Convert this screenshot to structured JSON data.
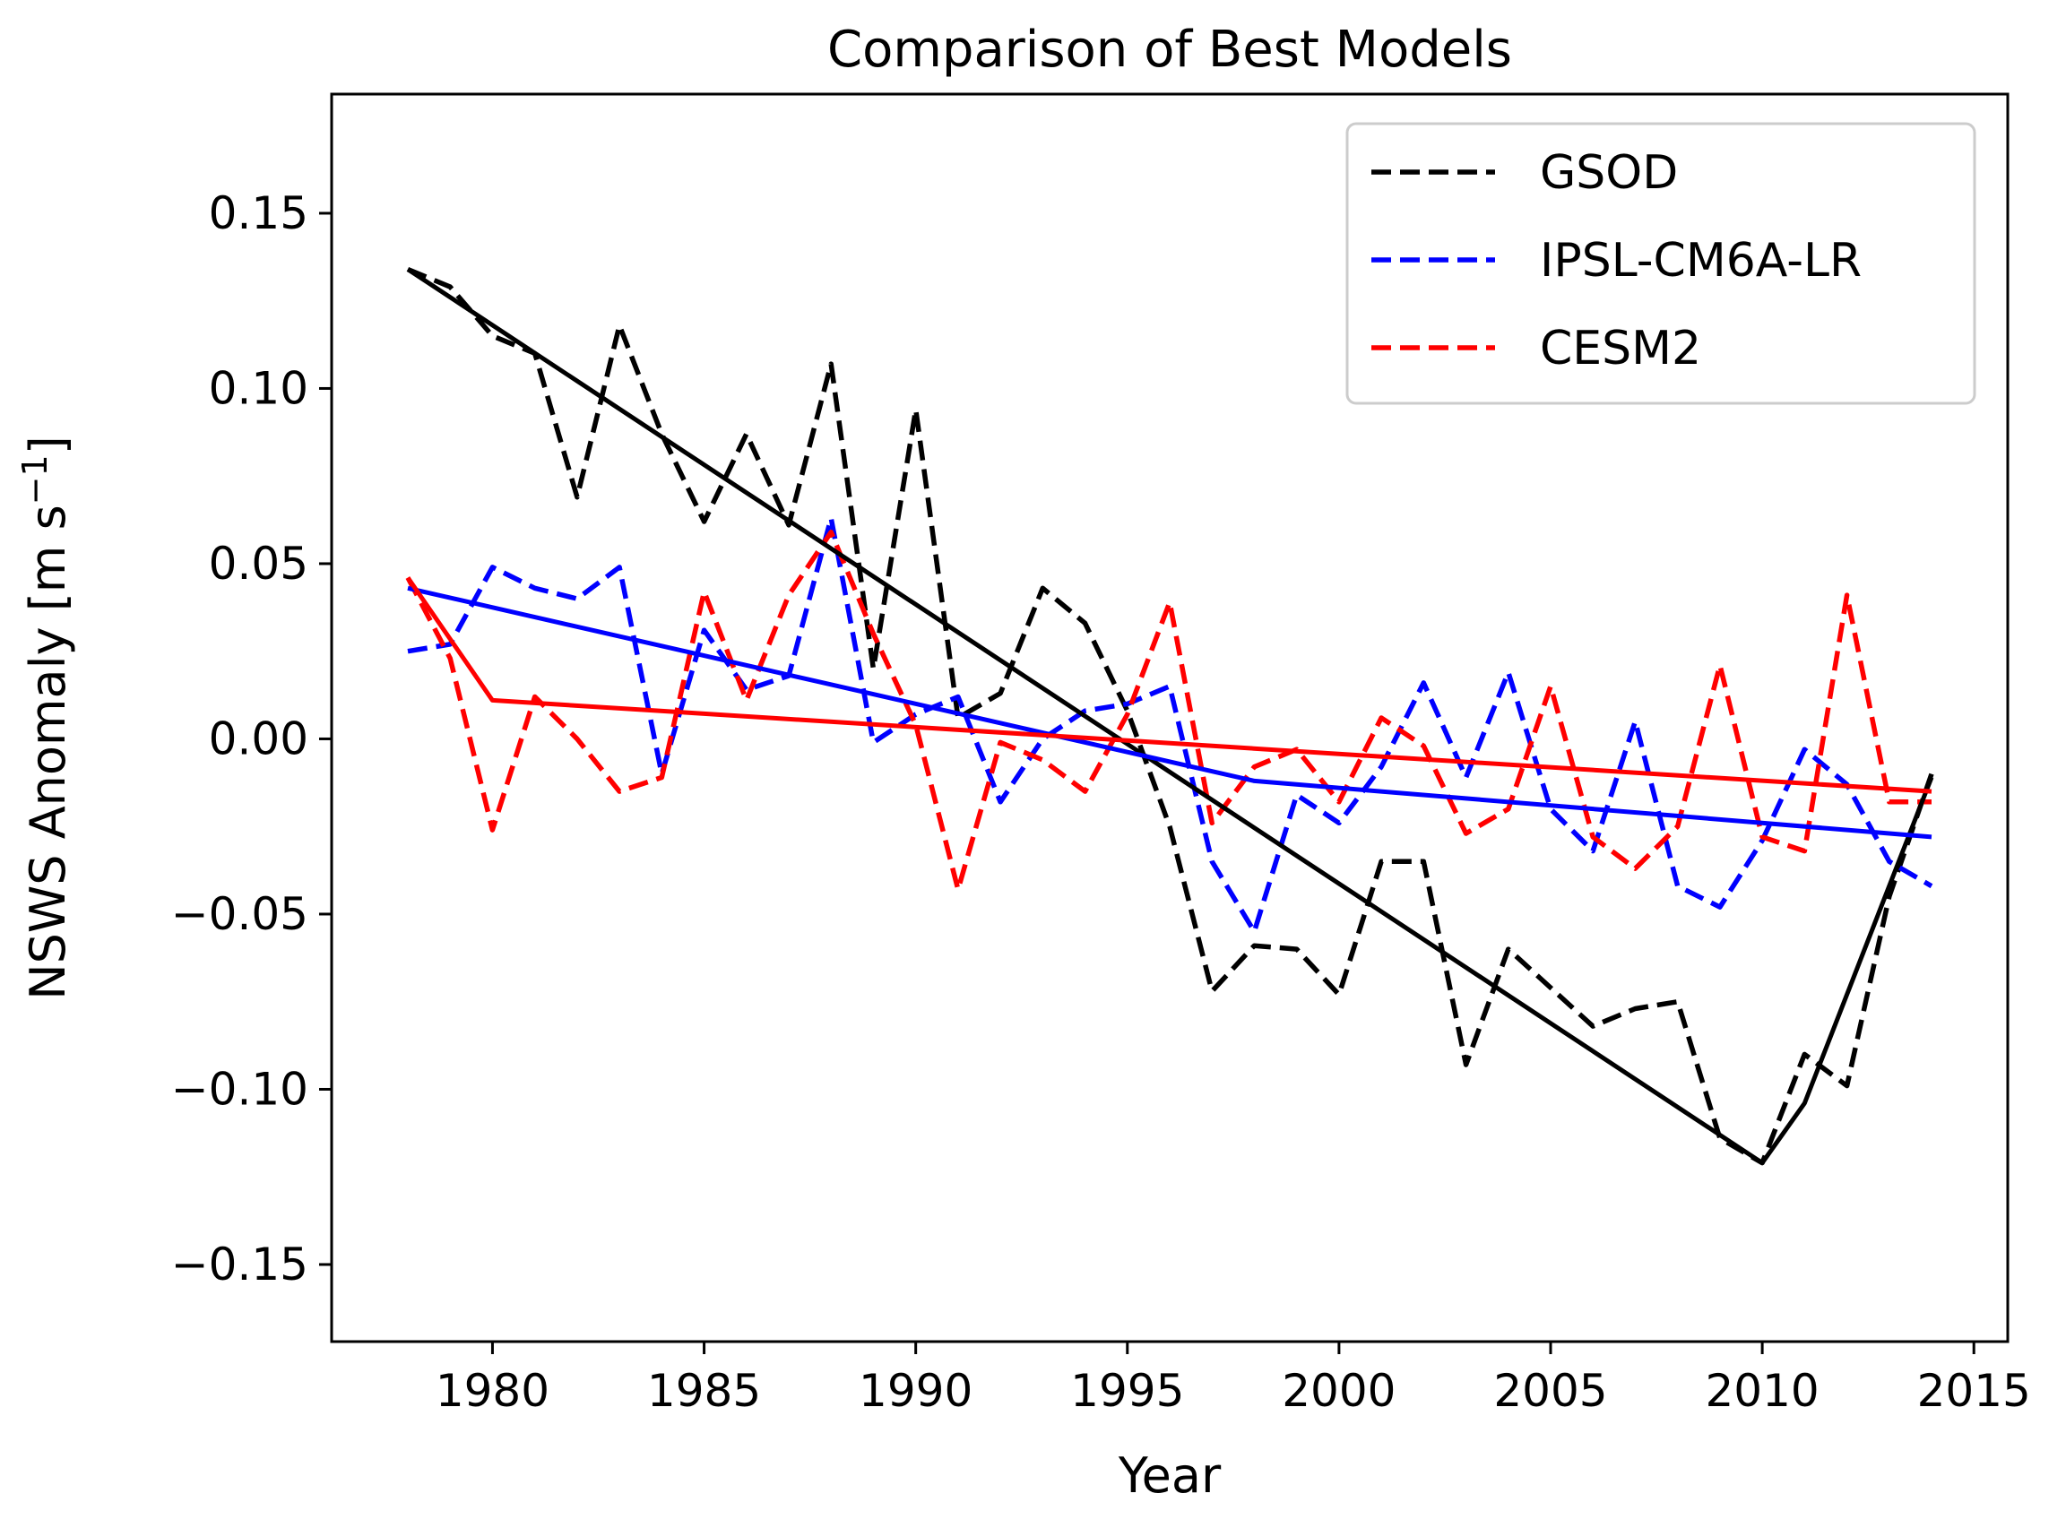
{
  "chart_data": {
    "type": "line",
    "title": "Comparison of Best Models",
    "xlabel": "Year",
    "ylabel": "NSWS Anomaly [m s",
    "ylabel_sup": "−1",
    "ylabel_end": "]",
    "xlim": [
      1976.2,
      2015.8
    ],
    "ylim": [
      -0.172,
      0.184
    ],
    "xticks": [
      1980,
      1985,
      1990,
      1995,
      2000,
      2005,
      2010,
      2015
    ],
    "xtick_labels": [
      "1980",
      "1985",
      "1990",
      "1995",
      "2000",
      "2005",
      "2010",
      "2015"
    ],
    "yticks": [
      -0.15,
      -0.1,
      -0.05,
      0.0,
      0.05,
      0.1,
      0.15
    ],
    "ytick_labels": [
      "−0.15",
      "−0.10",
      "−0.05",
      "0.00",
      "0.05",
      "0.10",
      "0.15"
    ],
    "grid": false,
    "legend_position": "top-right",
    "x": [
      1978,
      1979,
      1980,
      1981,
      1982,
      1983,
      1984,
      1985,
      1986,
      1987,
      1988,
      1989,
      1990,
      1991,
      1992,
      1993,
      1994,
      1995,
      1996,
      1997,
      1998,
      1999,
      2000,
      2001,
      2002,
      2003,
      2004,
      2005,
      2006,
      2007,
      2008,
      2009,
      2010,
      2011,
      2012,
      2013,
      2014
    ],
    "series": [
      {
        "name": "GSOD",
        "color": "#000000",
        "style": "dashed",
        "values": [
          0.134,
          0.129,
          0.115,
          0.11,
          0.069,
          0.118,
          0.087,
          0.062,
          0.087,
          0.061,
          0.107,
          0.02,
          0.094,
          0.006,
          0.013,
          0.043,
          0.033,
          0.008,
          -0.025,
          -0.072,
          -0.059,
          -0.06,
          -0.073,
          -0.035,
          -0.035,
          -0.093,
          -0.06,
          -0.071,
          -0.082,
          -0.077,
          -0.075,
          -0.114,
          -0.121,
          -0.09,
          -0.099,
          -0.045,
          -0.01
        ]
      },
      {
        "name": "IPSL-CM6A-LR",
        "color": "#0000ff",
        "style": "dashed",
        "values": [
          0.025,
          0.027,
          0.049,
          0.043,
          0.04,
          0.049,
          -0.01,
          0.031,
          0.014,
          0.018,
          0.063,
          -0.001,
          0.007,
          0.012,
          -0.018,
          0.0,
          0.008,
          0.01,
          0.015,
          -0.035,
          -0.055,
          -0.016,
          -0.024,
          -0.008,
          0.016,
          -0.011,
          0.019,
          -0.02,
          -0.032,
          0.005,
          -0.042,
          -0.048,
          -0.029,
          -0.003,
          -0.013,
          -0.035,
          -0.042
        ]
      },
      {
        "name": "CESM2",
        "color": "#ff0000",
        "style": "dashed",
        "values": [
          0.046,
          0.023,
          -0.026,
          0.012,
          0.0,
          -0.015,
          -0.011,
          0.042,
          0.011,
          0.041,
          0.059,
          0.03,
          0.004,
          -0.043,
          -0.001,
          -0.006,
          -0.015,
          0.007,
          0.039,
          -0.024,
          -0.008,
          -0.003,
          -0.018,
          0.006,
          -0.002,
          -0.027,
          -0.02,
          0.015,
          -0.028,
          -0.037,
          -0.025,
          0.021,
          -0.028,
          -0.032,
          0.041,
          -0.018,
          -0.018
        ]
      }
    ],
    "trend_lines": [
      {
        "color": "#000000",
        "style": "solid",
        "points": [
          [
            1978,
            0.134
          ],
          [
            2010,
            -0.121
          ],
          [
            2011,
            -0.104
          ],
          [
            2014,
            -0.011
          ]
        ]
      },
      {
        "color": "#0000ff",
        "style": "solid",
        "points": [
          [
            1978,
            0.043
          ],
          [
            1998,
            -0.012
          ],
          [
            2014,
            -0.028
          ]
        ]
      },
      {
        "color": "#ff0000",
        "style": "solid",
        "points": [
          [
            1978,
            0.046
          ],
          [
            1980,
            0.011
          ],
          [
            2014,
            -0.015
          ]
        ]
      }
    ]
  }
}
